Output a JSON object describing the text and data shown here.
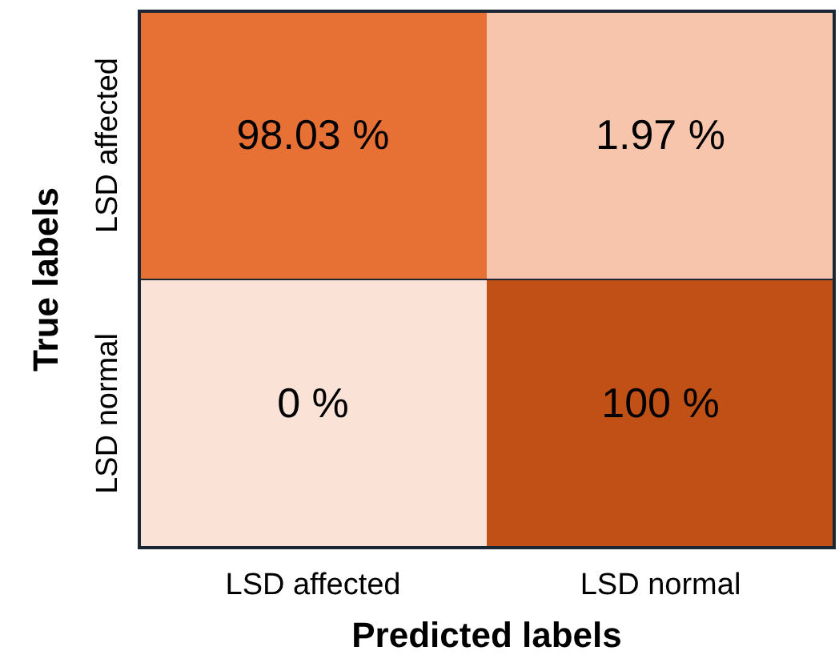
{
  "chart_data": {
    "type": "heatmap",
    "xlabel": "Predicted labels",
    "ylabel": "True labels",
    "categories": [
      "LSD affected",
      "LSD normal"
    ],
    "y_categories": [
      "LSD affected",
      "LSD normal"
    ],
    "cells": [
      [
        98.03,
        1.97
      ],
      [
        0,
        100
      ]
    ],
    "cell_labels": [
      [
        "98.03 %",
        "1.97 %"
      ],
      [
        "0 %",
        "100 %"
      ]
    ]
  }
}
